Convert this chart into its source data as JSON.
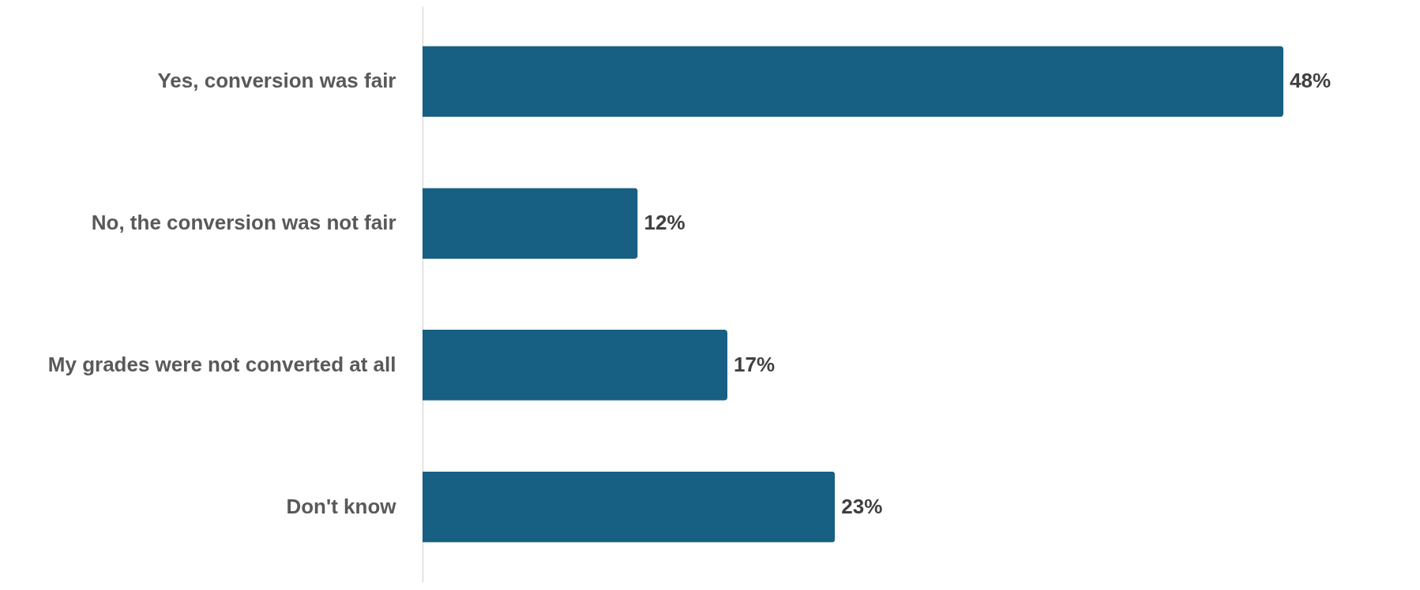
{
  "chart_data": {
    "type": "bar",
    "orientation": "horizontal",
    "categories": [
      "Yes, conversion was fair",
      "No, the conversion was not fair",
      "My grades were not converted at all",
      "Don't know"
    ],
    "values": [
      48,
      12,
      17,
      23
    ],
    "value_labels": [
      "48%",
      "12%",
      "17%",
      "23%"
    ],
    "color": "#176083"
  }
}
